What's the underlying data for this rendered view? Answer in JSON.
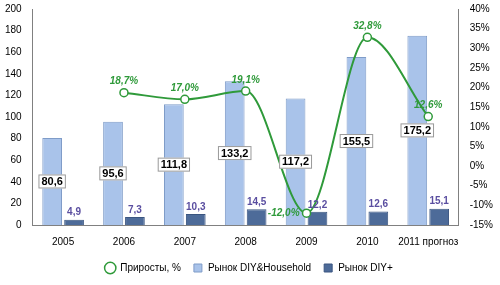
{
  "chart_data": {
    "type": "bar",
    "categories": [
      "2005",
      "2006",
      "2007",
      "2008",
      "2009",
      "2010",
      "2011 прогноз"
    ],
    "series": [
      {
        "name": "Рынок DIY&Household",
        "type": "bar",
        "color": "#a9c3ea",
        "values": [
          80.6,
          95.6,
          111.8,
          133.2,
          117.2,
          155.5,
          175.2
        ],
        "value_labels": [
          "80,6",
          "95,6",
          "111,8",
          "133,2",
          "117,2",
          "155,5",
          "175,2"
        ]
      },
      {
        "name": "Рынок DIY+",
        "type": "bar",
        "color": "#4d6b99",
        "values": [
          4.9,
          7.3,
          10.3,
          14.5,
          12.2,
          12.6,
          15.1
        ],
        "value_labels": [
          "4,9",
          "7,3",
          "10,3",
          "14,5",
          "12,2",
          "12,6",
          "15,1"
        ]
      },
      {
        "name": "Приросты, %",
        "type": "line",
        "color": "#2f9a3a",
        "axis": "y2",
        "marker": "circle",
        "line_style": "solid",
        "values": [
          null,
          18.7,
          17.0,
          19.1,
          -12.0,
          32.8,
          12.6
        ],
        "value_labels": [
          null,
          "18,7%",
          "17,0%",
          "19,1%",
          "-12,0%",
          "32,8%",
          "12,6%"
        ]
      }
    ],
    "ylim": [
      0,
      200
    ],
    "yticks": [
      0,
      20,
      40,
      60,
      80,
      100,
      120,
      140,
      160,
      180,
      200
    ],
    "y2lim": [
      -15,
      40
    ],
    "y2ticks": [
      {
        "value": -15,
        "label": "-15%"
      },
      {
        "value": -10,
        "label": "-10%"
      },
      {
        "value": -5,
        "label": "-5%"
      },
      {
        "value": 0,
        "label": "0%"
      },
      {
        "value": 5,
        "label": "5%"
      },
      {
        "value": 10,
        "label": "10%"
      },
      {
        "value": 15,
        "label": "15%"
      },
      {
        "value": 20,
        "label": "20%"
      },
      {
        "value": 25,
        "label": "25%"
      },
      {
        "value": 30,
        "label": "30%"
      },
      {
        "value": 35,
        "label": "35%"
      },
      {
        "value": 40,
        "label": "40%"
      }
    ],
    "grid": false,
    "legend": "bottom",
    "data_labels": true
  }
}
